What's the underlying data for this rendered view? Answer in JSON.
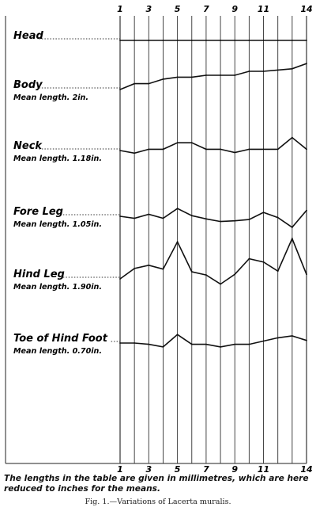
{
  "chart_data": {
    "type": "line",
    "x": [
      1,
      2,
      3,
      4,
      5,
      6,
      7,
      8,
      9,
      10,
      11,
      12,
      13,
      14
    ],
    "x_tick_labels": [
      "1",
      "3",
      "5",
      "7",
      "9",
      "11",
      "14"
    ],
    "x_tick_values": [
      1,
      3,
      5,
      7,
      9,
      11,
      14
    ],
    "grid": "vertical lines at each specimen 1–14",
    "series": [
      {
        "name": "Head",
        "sublabel": "",
        "values": [
          0,
          0,
          0,
          0,
          0,
          0,
          0,
          0,
          0,
          0,
          0,
          0,
          0,
          0
        ]
      },
      {
        "name": "Body",
        "sublabel": "Mean length. 2in.",
        "values": [
          0,
          1.8,
          1.8,
          3.2,
          3.8,
          3.8,
          4.4,
          4.4,
          4.4,
          5.6,
          5.6,
          6.0,
          6.4,
          8.0
        ]
      },
      {
        "name": "Neck",
        "sublabel": "Mean length. 1.18in.",
        "values": [
          0,
          -0.8,
          0.4,
          0.4,
          2.4,
          2.4,
          0.4,
          0.4,
          -0.6,
          0.4,
          0.4,
          0.4,
          4.0,
          0.4
        ]
      },
      {
        "name": "Fore Leg",
        "sublabel": "Mean length. 1.05in.",
        "values": [
          0,
          -0.6,
          0.6,
          -0.6,
          2.4,
          0.2,
          -0.8,
          -1.6,
          -1.4,
          -1.0,
          1.2,
          -0.4,
          -3.4,
          1.8
        ]
      },
      {
        "name": "Hind Leg",
        "sublabel": "Mean length. 1.90in.",
        "values": [
          0,
          3.2,
          4.2,
          3.0,
          11.4,
          2.2,
          1.2,
          -1.6,
          1.4,
          6.2,
          5.2,
          2.4,
          12.4,
          1.4
        ]
      },
      {
        "name": "Toe of Hind Foot",
        "sublabel": "Mean length. 0.70in.",
        "values": [
          0,
          0,
          -0.4,
          -1.2,
          2.6,
          -0.4,
          -0.4,
          -1.2,
          -0.4,
          -0.4,
          0.6,
          1.6,
          2.2,
          0.8
        ]
      }
    ]
  },
  "note": "The lengths in the table are given in millimetres, which are here reduced to inches for the means.",
  "figure_caption": "Fig. 1.—Variations of Lacerta muralis."
}
